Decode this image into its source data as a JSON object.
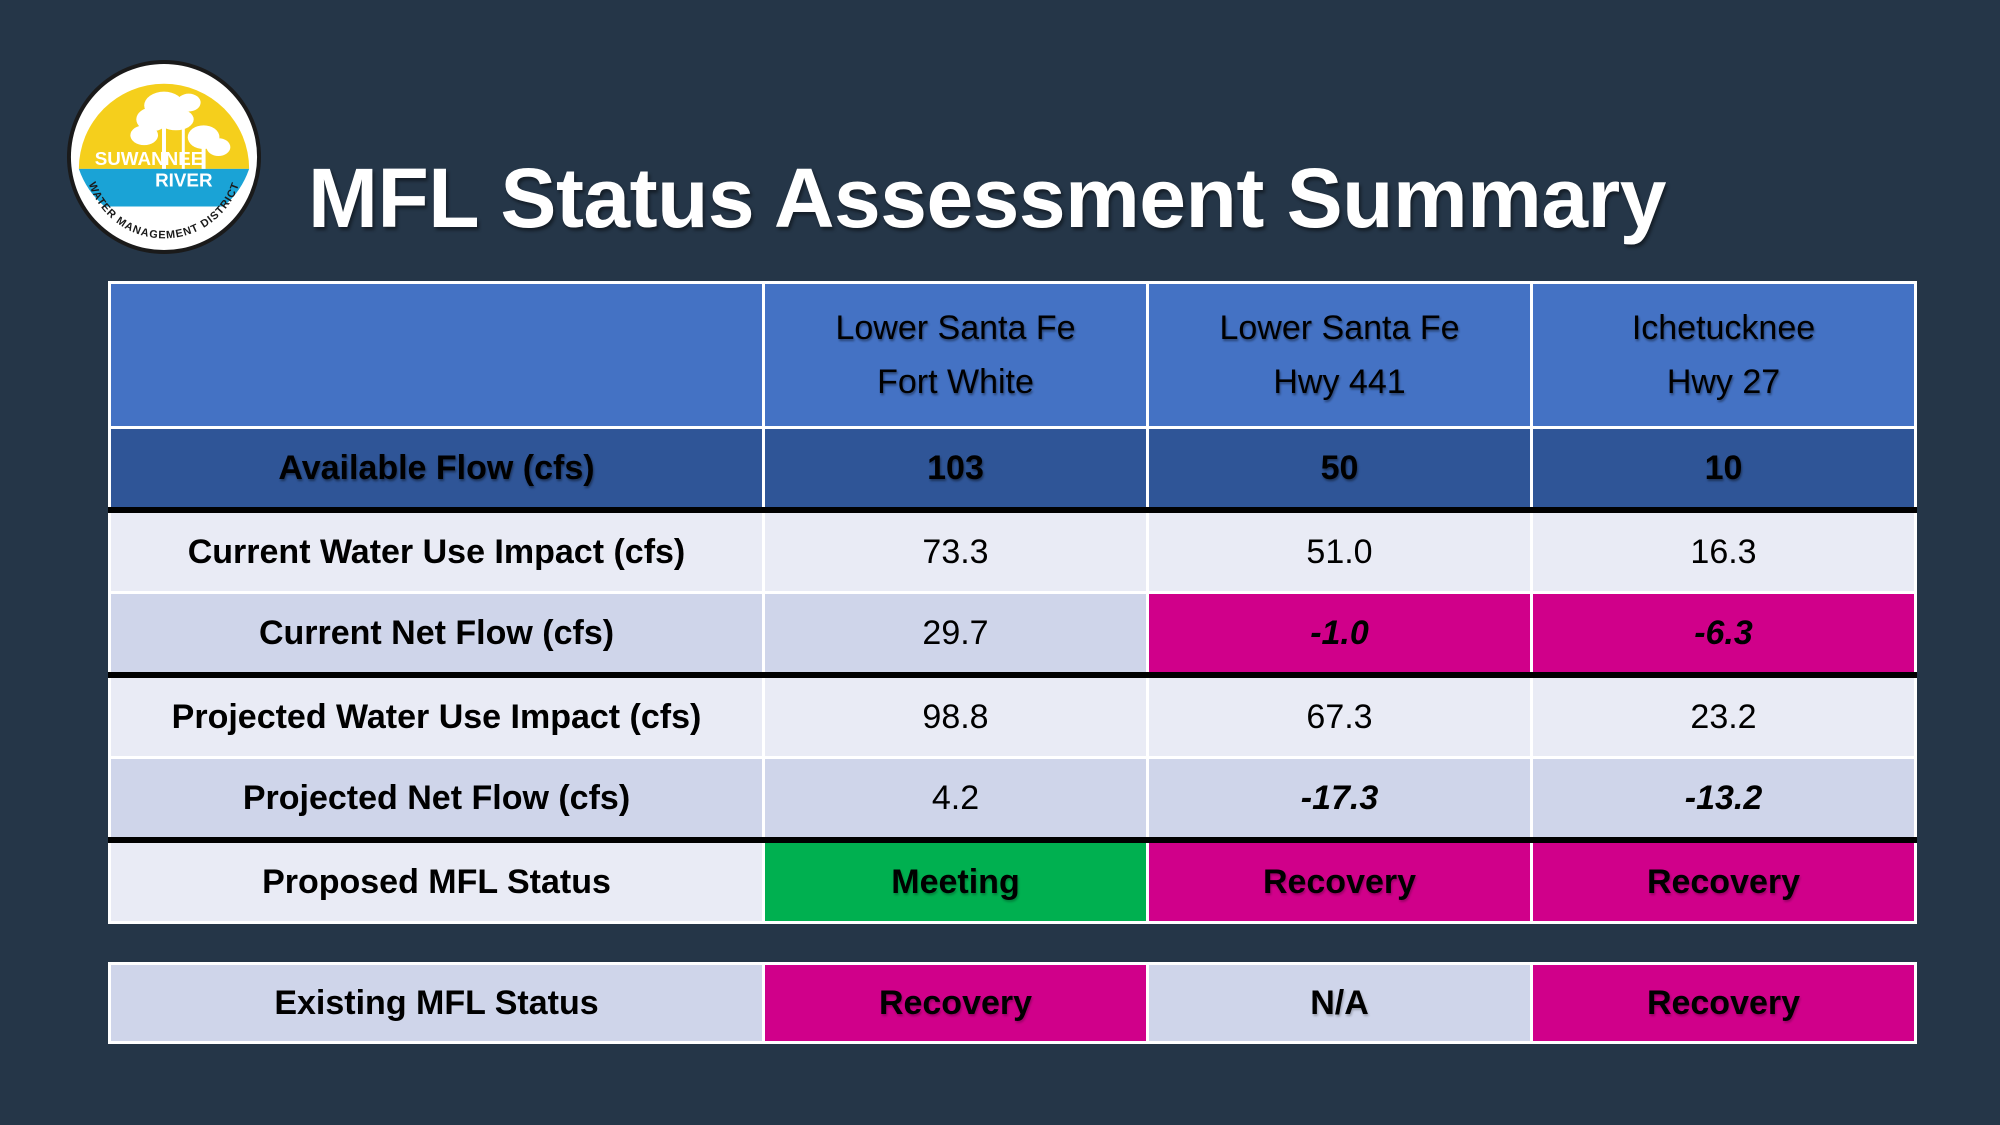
{
  "logo": {
    "text_line1": "SUWANNEE",
    "text_line2": "RIVER",
    "text_arc": "WATER MANAGEMENT DISTRICT",
    "colors": {
      "sun": "#f5cf1c",
      "water": "#1aa3d6",
      "ring": "#1a1a1a"
    }
  },
  "title": "MFL Status Assessment Summary",
  "table": {
    "columns": [
      {
        "line1": "Lower Santa Fe",
        "line2": "Fort White"
      },
      {
        "line1": "Lower Santa Fe",
        "line2": "Hwy 441"
      },
      {
        "line1": "Ichetucknee",
        "line2": "Hwy 27"
      }
    ],
    "rows": {
      "available_flow": {
        "label": "Available Flow (cfs)",
        "values": [
          "103",
          "50",
          "10"
        ]
      },
      "current_impact": {
        "label": "Current Water Use Impact (cfs)",
        "values": [
          "73.3",
          "51.0",
          "16.3"
        ]
      },
      "current_net": {
        "label": "Current Net Flow (cfs)",
        "values": [
          "29.7",
          "-1.0",
          "-6.3"
        ]
      },
      "projected_impact": {
        "label": "Projected Water Use Impact (cfs)",
        "values": [
          "98.8",
          "67.3",
          "23.2"
        ]
      },
      "projected_net": {
        "label": "Projected Net Flow (cfs)",
        "values": [
          "4.2",
          "-17.3",
          "-13.2"
        ]
      },
      "proposed_status": {
        "label": "Proposed MFL Status",
        "values": [
          "Meeting",
          "Recovery",
          "Recovery"
        ]
      }
    }
  },
  "existing": {
    "label": "Existing MFL Status",
    "values": [
      "Recovery",
      "N/A",
      "Recovery"
    ]
  },
  "colors": {
    "background": "#253648",
    "header_blue": "#4472c4",
    "dark_blue": "#2f5597",
    "light_row": "#e9ebf5",
    "mid_row": "#cfd5ea",
    "recovery_magenta": "#d0008a",
    "meeting_green": "#00b050"
  }
}
